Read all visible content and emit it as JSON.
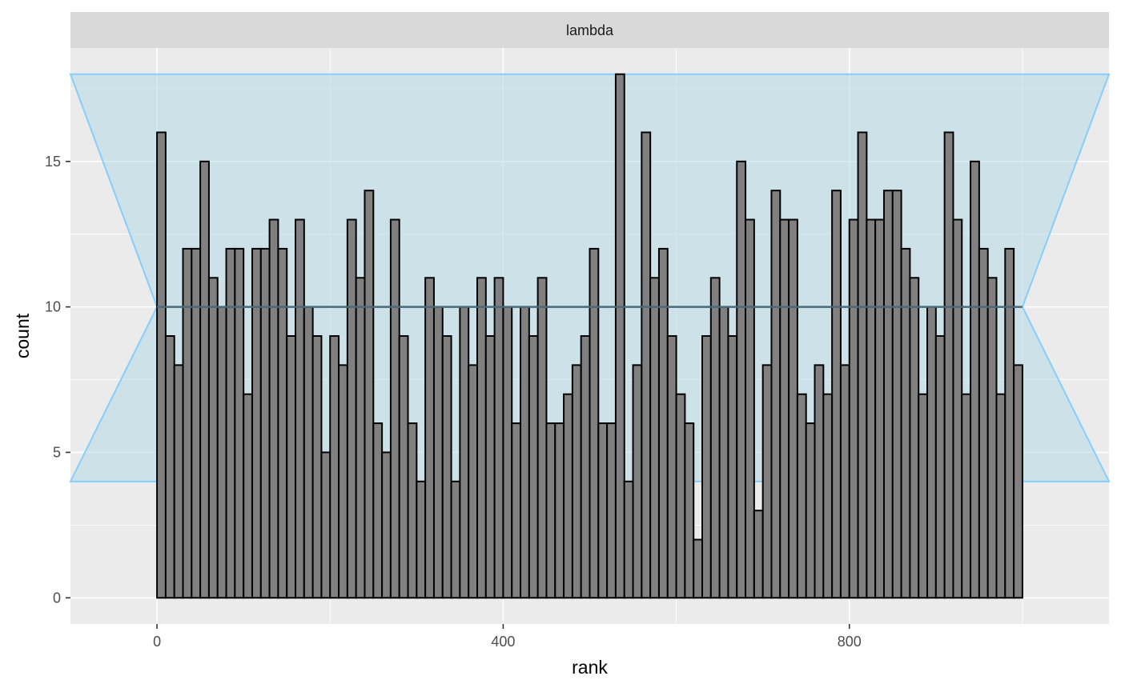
{
  "chart_data": {
    "type": "bar",
    "facet_label": "lambda",
    "xlabel": "rank",
    "ylabel": "count",
    "xlim": [
      -100,
      1100
    ],
    "ylim": [
      -0.9,
      18.9
    ],
    "x_ticks": [
      0,
      400,
      800
    ],
    "y_ticks": [
      0,
      5,
      10,
      15
    ],
    "bin_width": 10,
    "bin_start": 0,
    "values": [
      16,
      9,
      8,
      12,
      12,
      15,
      11,
      10,
      12,
      12,
      7,
      12,
      12,
      13,
      12,
      9,
      13,
      10,
      9,
      5,
      9,
      8,
      13,
      11,
      14,
      6,
      5,
      13,
      9,
      6,
      4,
      11,
      10,
      9,
      4,
      10,
      8,
      11,
      9,
      11,
      10,
      6,
      10,
      9,
      11,
      6,
      6,
      7,
      8,
      9,
      12,
      6,
      6,
      18,
      4,
      8,
      16,
      11,
      12,
      9,
      7,
      6,
      2,
      9,
      11,
      10,
      9,
      15,
      13,
      3,
      8,
      14,
      13,
      13,
      7,
      6,
      8,
      7,
      14,
      8,
      13,
      16,
      13,
      13,
      14,
      14,
      12,
      11,
      7,
      10,
      9,
      16,
      13,
      7,
      15,
      12,
      11,
      7,
      12,
      8
    ],
    "expected_count": 10,
    "band": {
      "outer_x": [
        -100,
        1100
      ],
      "inner_x": [
        0,
        1000
      ],
      "lower": 4,
      "upper": 18,
      "waist": 10
    },
    "colors": {
      "panel_bg": "#ebebeb",
      "grid_major": "#ffffff",
      "bar_fill": "#808080",
      "bar_outline": "#000000",
      "band_fill": "#add8e6",
      "band_stroke": "#87cefa",
      "expected_line": "#4a6a7a",
      "strip_bg": "#d9d9d9"
    },
    "grid": true
  }
}
